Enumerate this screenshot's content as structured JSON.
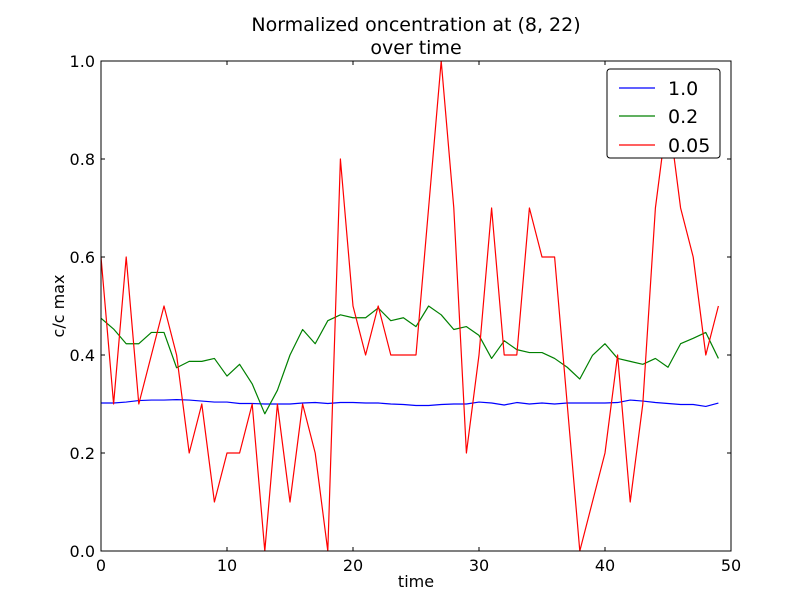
{
  "chart_data": {
    "type": "line",
    "title": [
      "Normalized oncentration at (8, 22)",
      "over time"
    ],
    "xlabel": "time",
    "ylabel": "c/c max",
    "xlim": [
      0,
      50
    ],
    "ylim": [
      0.0,
      1.0
    ],
    "xticks": [
      "0",
      "10",
      "20",
      "30",
      "40",
      "50"
    ],
    "yticks": [
      "0.0",
      "0.2",
      "0.4",
      "0.6",
      "0.8",
      "1.0"
    ],
    "grid": false,
    "legend_position": "top-right",
    "x": [
      0,
      1,
      2,
      3,
      4,
      5,
      6,
      7,
      8,
      9,
      10,
      11,
      12,
      13,
      14,
      15,
      16,
      17,
      18,
      19,
      20,
      21,
      22,
      23,
      24,
      25,
      26,
      27,
      28,
      29,
      30,
      31,
      32,
      33,
      34,
      35,
      36,
      37,
      38,
      39,
      40,
      41,
      42,
      43,
      44,
      45,
      46,
      47,
      48,
      49
    ],
    "series": [
      {
        "name": "1.0",
        "color": "#0000ff",
        "values": [
          0.302,
          0.302,
          0.304,
          0.307,
          0.308,
          0.308,
          0.309,
          0.308,
          0.306,
          0.304,
          0.304,
          0.301,
          0.301,
          0.3,
          0.3,
          0.3,
          0.302,
          0.303,
          0.301,
          0.303,
          0.303,
          0.302,
          0.302,
          0.3,
          0.299,
          0.297,
          0.297,
          0.299,
          0.3,
          0.3,
          0.304,
          0.302,
          0.298,
          0.303,
          0.3,
          0.302,
          0.3,
          0.302,
          0.302,
          0.302,
          0.302,
          0.303,
          0.308,
          0.306,
          0.303,
          0.301,
          0.299,
          0.299,
          0.295,
          0.302
        ]
      },
      {
        "name": "0.2",
        "color": "#008000",
        "values": [
          0.475,
          0.453,
          0.423,
          0.423,
          0.446,
          0.446,
          0.374,
          0.387,
          0.387,
          0.393,
          0.357,
          0.381,
          0.341,
          0.28,
          0.328,
          0.4,
          0.452,
          0.423,
          0.47,
          0.482,
          0.476,
          0.476,
          0.496,
          0.47,
          0.476,
          0.458,
          0.5,
          0.482,
          0.452,
          0.458,
          0.44,
          0.393,
          0.429,
          0.411,
          0.405,
          0.405,
          0.393,
          0.375,
          0.351,
          0.399,
          0.423,
          0.393,
          0.387,
          0.381,
          0.393,
          0.375,
          0.423,
          0.434,
          0.446,
          0.393
        ]
      },
      {
        "name": "0.05",
        "color": "#ff0000",
        "values": [
          0.6,
          0.3,
          0.6,
          0.3,
          0.4,
          0.5,
          0.4,
          0.2,
          0.3,
          0.1,
          0.2,
          0.2,
          0.3,
          0.0,
          0.3,
          0.1,
          0.3,
          0.2,
          0.0,
          0.8,
          0.5,
          0.4,
          0.5,
          0.4,
          0.4,
          0.4,
          0.7,
          1.0,
          0.7,
          0.2,
          0.4,
          0.7,
          0.4,
          0.4,
          0.7,
          0.6,
          0.6,
          0.3,
          0.0,
          0.1,
          0.2,
          0.4,
          0.1,
          0.3,
          0.7,
          0.9,
          0.7,
          0.6,
          0.4,
          0.5
        ]
      }
    ]
  }
}
